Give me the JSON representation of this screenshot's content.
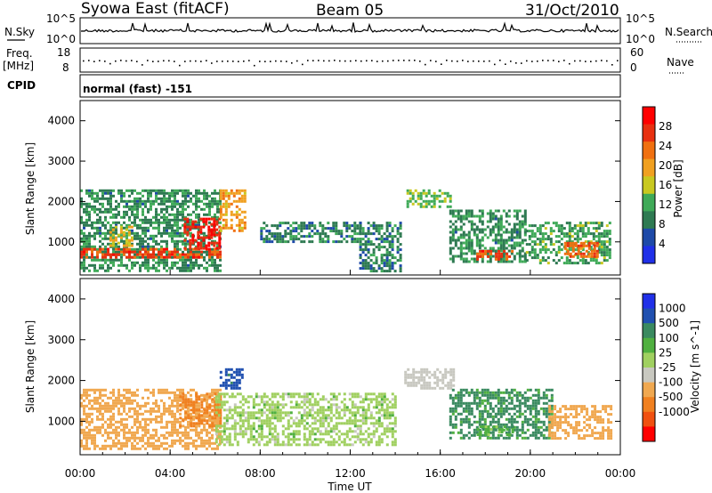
{
  "header": {
    "station": "Syowa East (fitACF)",
    "beam": "Beam 05",
    "date": "31/Oct/2010"
  },
  "housekeeping": {
    "nsky_label": "N.Sky",
    "nsky_scale_top": "10^5",
    "nsky_scale_bottom": "10^0",
    "nsearch_label": "N.Search",
    "freq_label": "Freq.",
    "freq_unit": "[MHz]",
    "freq_range": [
      8,
      18
    ],
    "nave_label": "Nave",
    "nave_range": [
      0,
      60
    ],
    "cpid_label": "CPID",
    "cpid_value": "normal (fast) -151"
  },
  "colors": {
    "power": [
      "#2030e8",
      "#1e4aa8",
      "#2e7a52",
      "#3faa58",
      "#c8c820",
      "#f0a020",
      "#f07010",
      "#e83010",
      "#ff0000"
    ],
    "velocity": [
      "#ff0000",
      "#f05010",
      "#f08020",
      "#f0a850",
      "#c8c8c0",
      "#a0d060",
      "#50b040",
      "#3a8a60",
      "#2050b0",
      "#2030e8"
    ]
  },
  "chart_data": [
    {
      "type": "heatmap",
      "panel": "power",
      "ylabel": "Slant Range [km]",
      "xlim": [
        "00:00",
        "24:00"
      ],
      "ylim": [
        180,
        4500
      ],
      "yticks": [
        "1000",
        "2000",
        "3000",
        "4000"
      ],
      "colorbar": {
        "label": "Power [dB]",
        "range": [
          0,
          32
        ],
        "ticks": [
          "4",
          "8",
          "12",
          "16",
          "20",
          "24",
          "28"
        ]
      },
      "regions": [
        {
          "t0": 0.0,
          "t1": 6.2,
          "r0": 300,
          "r1": 2300,
          "value": 10
        },
        {
          "t0": 0.0,
          "t1": 6.2,
          "r0": 600,
          "r1": 850,
          "value": 26
        },
        {
          "t0": 4.6,
          "t1": 6.2,
          "r0": 850,
          "r1": 1600,
          "value": 28
        },
        {
          "t0": 1.3,
          "t1": 2.3,
          "r0": 900,
          "r1": 1400,
          "value": 18
        },
        {
          "t0": 6.2,
          "t1": 7.3,
          "r0": 1300,
          "r1": 2300,
          "value": 20
        },
        {
          "t0": 8.0,
          "t1": 12.4,
          "r0": 1000,
          "r1": 1500,
          "value": 9
        },
        {
          "t0": 12.4,
          "t1": 14.2,
          "r0": 300,
          "r1": 1500,
          "value": 9
        },
        {
          "t0": 14.5,
          "t1": 16.5,
          "r0": 1900,
          "r1": 2300,
          "value": 14
        },
        {
          "t0": 16.4,
          "t1": 19.8,
          "r0": 500,
          "r1": 1800,
          "value": 10
        },
        {
          "t0": 17.6,
          "t1": 19.2,
          "r0": 600,
          "r1": 800,
          "value": 26
        },
        {
          "t0": 19.8,
          "t1": 23.5,
          "r0": 500,
          "r1": 1500,
          "value": 12
        },
        {
          "t0": 21.5,
          "t1": 23.0,
          "r0": 650,
          "r1": 1000,
          "value": 24
        }
      ]
    },
    {
      "type": "heatmap",
      "panel": "velocity",
      "ylabel": "Slant Range [km]",
      "xlabel": "Time UT",
      "xlim": [
        "00:00",
        "24:00"
      ],
      "xticks": [
        "00:00",
        "04:00",
        "08:00",
        "12:00",
        "16:00",
        "20:00",
        "00:00"
      ],
      "ylim": [
        180,
        4500
      ],
      "yticks": [
        "1000",
        "2000",
        "3000",
        "4000"
      ],
      "colorbar": {
        "label": "Velocity [m s^-1]",
        "ticks": [
          "-1000",
          "-500",
          "-100",
          "-25",
          "25",
          "100",
          "500",
          "1000"
        ]
      },
      "regions": [
        {
          "t0": 0.0,
          "t1": 6.2,
          "r0": 300,
          "r1": 1800,
          "value": -150
        },
        {
          "t0": 4.4,
          "t1": 6.2,
          "r0": 900,
          "r1": 1700,
          "value": -600
        },
        {
          "t0": 6.2,
          "t1": 7.2,
          "r0": 1800,
          "r1": 2300,
          "value": 700
        },
        {
          "t0": 6.0,
          "t1": 14.0,
          "r0": 400,
          "r1": 1700,
          "value": 0
        },
        {
          "t0": 14.4,
          "t1": 16.6,
          "r0": 1800,
          "r1": 2300,
          "value": -50
        },
        {
          "t0": 16.4,
          "t1": 21.0,
          "r0": 600,
          "r1": 1800,
          "value": 150
        },
        {
          "t0": 17.5,
          "t1": 19.2,
          "r0": 650,
          "r1": 900,
          "value": 60
        },
        {
          "t0": 20.8,
          "t1": 23.6,
          "r0": 600,
          "r1": 1400,
          "value": -200
        }
      ]
    }
  ]
}
